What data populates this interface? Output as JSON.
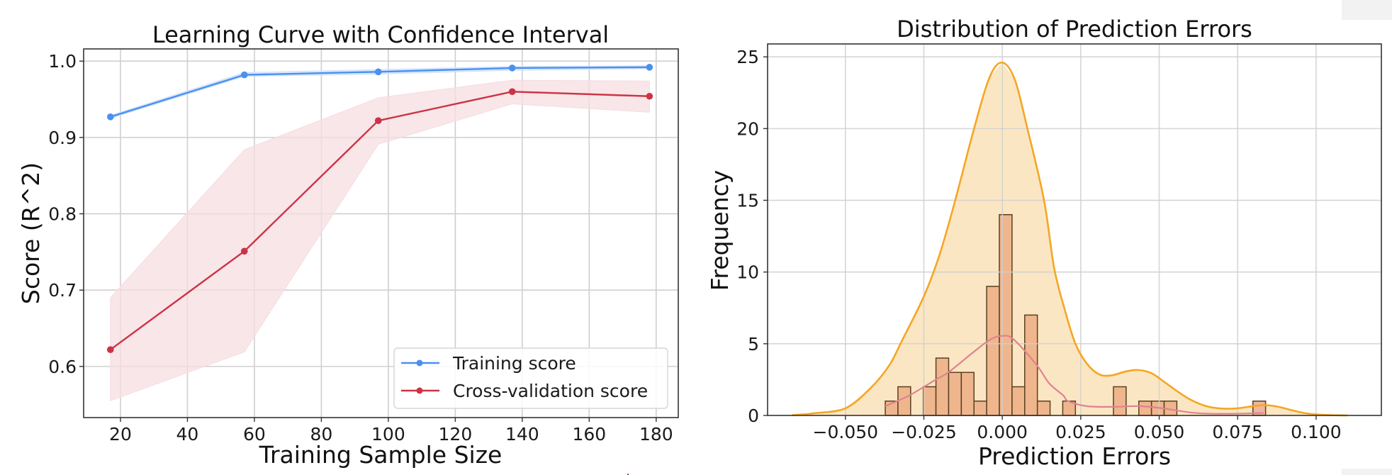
{
  "chart_data": [
    {
      "type": "line",
      "title": "Learning Curve with Confidence Interval",
      "xlabel": "Training Sample Size",
      "ylabel": "Score (R^2)",
      "xlim": [
        9,
        186.6
      ],
      "ylim": [
        0.533,
        1.016
      ],
      "grid": true,
      "xticks": [
        20,
        40,
        60,
        80,
        100,
        120,
        140,
        160,
        180
      ],
      "xtick_labels": [
        "20",
        "40",
        "60",
        "80",
        "100",
        "120",
        "140",
        "160",
        "180"
      ],
      "yticks": [
        0.6,
        0.7,
        0.8,
        0.9,
        1.0
      ],
      "ytick_labels": [
        "0.6",
        "0.7",
        "0.8",
        "0.9",
        "1.0"
      ],
      "x": [
        17,
        57,
        97,
        137,
        178
      ],
      "series": [
        {
          "name": "Training score",
          "color": "#4a90f0",
          "values": [
            0.927,
            0.982,
            0.986,
            0.991,
            0.992
          ],
          "ci_lower": [
            0.925,
            0.98,
            0.983,
            0.988,
            0.99
          ],
          "ci_upper": [
            0.929,
            0.985,
            0.989,
            0.993,
            0.994
          ],
          "band_color": "#cfe2fb"
        },
        {
          "name": "Cross-validation score",
          "color": "#cc3344",
          "values": [
            0.622,
            0.751,
            0.922,
            0.96,
            0.954
          ],
          "ci_lower": [
            0.555,
            0.619,
            0.891,
            0.944,
            0.933
          ],
          "ci_upper": [
            0.69,
            0.884,
            0.952,
            0.975,
            0.974
          ],
          "band_color": "#f5dde2"
        }
      ],
      "legend": {
        "position": "lower-right",
        "entries": [
          "Training score",
          "Cross-validation score"
        ]
      }
    },
    {
      "type": "histogram",
      "title": "Distribution of Prediction Errors",
      "xlabel": "Prediction Errors",
      "ylabel": "Frequency",
      "xlim": [
        -0.0748,
        0.1208
      ],
      "ylim": [
        0,
        25.9
      ],
      "grid": true,
      "xticks": [
        -0.05,
        -0.025,
        0.0,
        0.025,
        0.05,
        0.075,
        0.1
      ],
      "xtick_labels": [
        "−0.050",
        "−0.025",
        "0.000",
        "0.025",
        "0.050",
        "0.075",
        "0.100"
      ],
      "yticks": [
        0,
        5,
        10,
        15,
        20,
        25
      ],
      "ytick_labels": [
        "0",
        "5",
        "10",
        "15",
        "20",
        "25"
      ],
      "bins": {
        "start": -0.0373,
        "width": 0.00404,
        "counts": [
          1,
          2,
          0,
          2,
          4,
          3,
          3,
          1,
          9,
          14,
          2,
          7,
          1,
          0,
          1,
          0,
          0,
          0,
          2,
          0,
          1,
          1,
          1,
          0,
          0,
          0,
          0,
          0,
          0,
          1
        ]
      },
      "bar_color": "#efb68e",
      "bar_edge_color": "#5a4020",
      "kde_outer": {
        "color": "#f5a623",
        "fill": "#fbe6c3",
        "x": [
          -0.067,
          -0.06,
          -0.05,
          -0.042,
          -0.036,
          -0.032,
          -0.025,
          -0.02,
          -0.015,
          -0.009,
          -0.004,
          0.0,
          0.004,
          0.008,
          0.0133,
          0.0165,
          0.02,
          0.0233,
          0.027,
          0.031,
          0.035,
          0.039,
          0.043,
          0.047,
          0.05,
          0.055,
          0.06,
          0.065,
          0.07,
          0.075,
          0.08,
          0.084,
          0.088,
          0.092,
          0.096,
          0.1,
          0.105,
          0.11
        ],
        "y": [
          0.02,
          0.15,
          0.5,
          1.9,
          3.5,
          5.2,
          8.3,
          11.2,
          15,
          20,
          23.6,
          24.6,
          23.4,
          20,
          15,
          10.3,
          7.3,
          5,
          3.6,
          2.85,
          2.8,
          3.05,
          3.17,
          3.0,
          2.6,
          1.8,
          1.1,
          0.65,
          0.48,
          0.5,
          0.65,
          0.72,
          0.6,
          0.38,
          0.18,
          0.07,
          0.02,
          0.0
        ]
      },
      "kde_inner": {
        "color": "#e0828f",
        "x": [
          -0.0373,
          -0.0296,
          -0.0212,
          -0.0172,
          -0.0093,
          -0.0038,
          0.0,
          0.0036,
          0.011,
          0.0149,
          0.0194,
          0.021,
          0.0269,
          0.0352,
          0.0436,
          0.051,
          0.0617,
          0.072,
          0.0833
        ],
        "y": [
          0.65,
          1.4,
          2.5,
          3.0,
          4.4,
          5.3,
          5.55,
          5.3,
          3.5,
          2.25,
          1.4,
          1.0,
          0.65,
          0.6,
          0.65,
          0.5,
          0.17,
          0.12,
          0.17
        ]
      }
    }
  ]
}
